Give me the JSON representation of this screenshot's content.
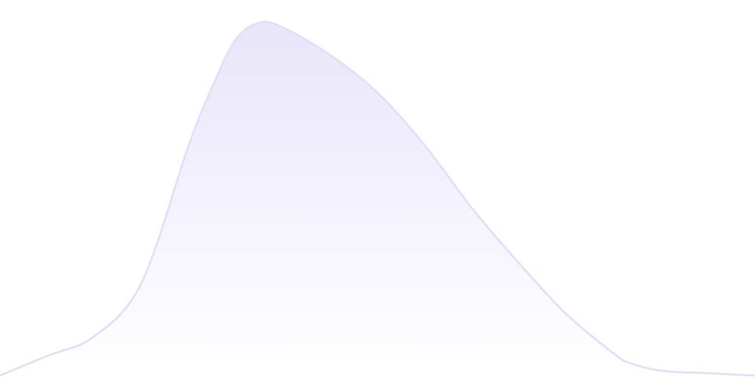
{
  "chart_data": {
    "type": "area",
    "title": "",
    "xlabel": "",
    "ylabel": "",
    "grid": false,
    "legend": "none",
    "ylim": [
      0,
      100
    ],
    "values": [
      0.4,
      5.6,
      10.8,
      25,
      61.5,
      77,
      89.6,
      94,
      92.7,
      85.4,
      75.4,
      61.5,
      44.8,
      30.2,
      16.7,
      6.3,
      3.8,
      1.7,
      1,
      0.4
    ],
    "x": [
      0,
      1,
      2,
      3,
      4,
      4.5,
      5,
      5.5,
      6,
      7,
      8,
      9,
      10,
      11,
      12,
      13,
      13.33,
      14,
      15,
      16
    ],
    "colors": {
      "line": "#e2def8",
      "fill_top": "#e9e5fa",
      "fill_bottom": "#ffffff"
    }
  }
}
